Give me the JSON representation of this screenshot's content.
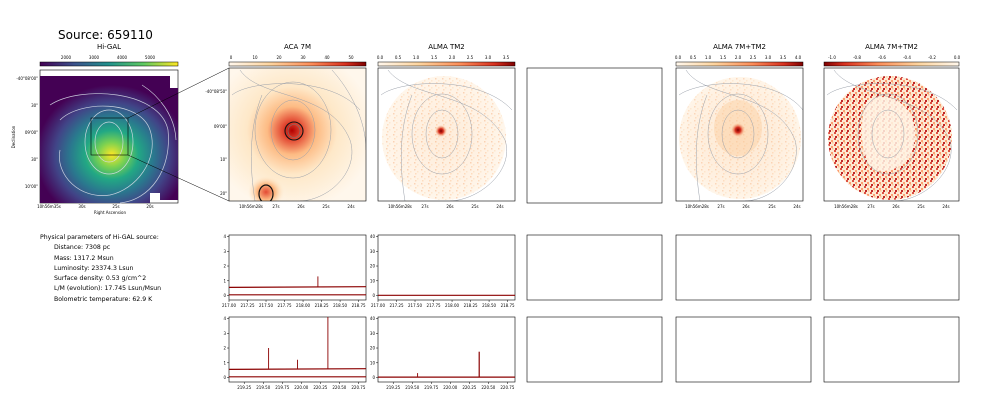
{
  "source_title": "Source: 659110",
  "panels": {
    "higal": {
      "title": "Hi-GAL",
      "colorbar_ticks": [
        "2000",
        "3000",
        "4000",
        "5000"
      ],
      "ra_ticks": [
        "10h56m35s",
        "30s",
        "25s",
        "20s"
      ],
      "dec_ticks": [
        "-40°08'00\"",
        "30\"",
        "09'00\"",
        "30\"",
        "10'00\""
      ],
      "xlabel": "Right Ascension",
      "ylabel": "Declination"
    },
    "aca": {
      "title": "ACA 7M",
      "colorbar_ticks": [
        "0",
        "10",
        "20",
        "30",
        "40",
        "50"
      ],
      "ra_ticks": [
        "10h56m28s",
        "27s",
        "26s",
        "25s",
        "24s"
      ],
      "dec_ticks": [
        "-40°08'50\"",
        "09'00\"",
        "10\"",
        "20\""
      ]
    },
    "tm2": {
      "title": "ALMA TM2",
      "colorbar_ticks": [
        "0.0",
        "0.5",
        "1.0",
        "1.5",
        "2.0",
        "2.5",
        "3.0",
        "3.5"
      ],
      "ra_ticks": [
        "10h56m28s",
        "27s",
        "26s",
        "25s",
        "24s"
      ]
    },
    "combo": {
      "title": "ALMA 7M+TM2",
      "colorbar_ticks": [
        "0.0",
        "0.5",
        "1.0",
        "1.5",
        "2.0",
        "2.5",
        "3.0",
        "3.5",
        "4.0"
      ],
      "ra_ticks": [
        "10h56m28s",
        "27s",
        "26s",
        "25s",
        "24s"
      ]
    },
    "diff": {
      "title": "ALMA 7M+TM2",
      "colorbar_ticks": [
        "-1.0",
        "-0.8",
        "-0.6",
        "-0.4",
        "-0.2",
        "0.0"
      ],
      "ra_ticks": [
        "10h56m28s",
        "27s",
        "26s",
        "25s",
        "24s"
      ]
    }
  },
  "params": {
    "header": "Physical parameters of Hi-GAL source:",
    "distance": "Distance: 7308 pc",
    "mass": "Mass: 1317.2 Msun",
    "luminosity": "Luminosity: 23374.3 Lsun",
    "surface_density": "Surface density: 0.53 g/cm^2",
    "lm": "L/M (evolution): 17.745 Lsun/Msun",
    "tbol": "Bolometric temperature: 62.9 K"
  },
  "colors": {
    "spectrum": "#8b0000",
    "contour": "#9aa0aa",
    "axis": "#000000"
  },
  "chart_data": [
    {
      "type": "line",
      "panel": "ACA 7M spectrum, upper band",
      "x_ticks": [
        "217.00",
        "217.25",
        "217.50",
        "217.75",
        "218.00",
        "218.25",
        "218.50",
        "218.75"
      ],
      "y_ticks": [
        "0",
        "1",
        "2",
        "3",
        "4"
      ],
      "xlim": [
        217.0,
        218.85
      ],
      "ylim": [
        -0.3,
        4.1
      ],
      "series": [
        {
          "x": [
            217.0,
            218.85
          ],
          "y": [
            0.55,
            0.6
          ]
        },
        {
          "x": [
            217.0,
            218.85
          ],
          "y": [
            0.05,
            0.05
          ]
        },
        {
          "x": [
            218.2,
            218.2
          ],
          "y": [
            0.6,
            1.3
          ]
        }
      ]
    },
    {
      "type": "line",
      "panel": "ALMA TM2 spectrum, upper band",
      "x_ticks": [
        "217.00",
        "217.25",
        "217.50",
        "217.75",
        "218.00",
        "218.25",
        "218.50",
        "218.75"
      ],
      "y_ticks": [
        "0",
        "10",
        "20",
        "30",
        "40"
      ],
      "xlim": [
        217.0,
        218.85
      ],
      "ylim": [
        -3,
        41
      ],
      "series": [
        {
          "x": [
            217.0,
            218.85
          ],
          "y": [
            0.2,
            0.2
          ]
        }
      ]
    },
    {
      "type": "line",
      "panel": "ACA 7M spectrum, lower band",
      "x_ticks": [
        "219.25",
        "219.50",
        "219.75",
        "220.00",
        "220.25",
        "220.50",
        "220.75"
      ],
      "y_ticks": [
        "0",
        "1",
        "2",
        "3",
        "4"
      ],
      "xlim": [
        219.05,
        220.85
      ],
      "ylim": [
        -0.3,
        4.1
      ],
      "series": [
        {
          "x": [
            219.05,
            220.85
          ],
          "y": [
            0.55,
            0.6
          ]
        },
        {
          "x": [
            219.05,
            220.85
          ],
          "y": [
            0.05,
            0.05
          ]
        },
        {
          "x": [
            219.57,
            219.57
          ],
          "y": [
            0.6,
            2.0
          ]
        },
        {
          "x": [
            219.95,
            219.95
          ],
          "y": [
            0.6,
            1.2
          ]
        },
        {
          "x": [
            220.35,
            220.35
          ],
          "y": [
            0.6,
            4.1
          ]
        }
      ]
    },
    {
      "type": "line",
      "panel": "ALMA TM2 spectrum, lower band",
      "x_ticks": [
        "219.25",
        "219.50",
        "219.75",
        "220.00",
        "220.25",
        "220.50",
        "220.75"
      ],
      "y_ticks": [
        "0",
        "10",
        "20",
        "30",
        "40"
      ],
      "xlim": [
        219.05,
        220.85
      ],
      "ylim": [
        -3,
        41
      ],
      "series": [
        {
          "x": [
            219.05,
            220.85
          ],
          "y": [
            0.3,
            0.3
          ]
        },
        {
          "x": [
            220.38,
            220.38
          ],
          "y": [
            0.3,
            17.5
          ]
        },
        {
          "x": [
            219.57,
            219.57
          ],
          "y": [
            0.3,
            3.0
          ]
        }
      ]
    }
  ]
}
